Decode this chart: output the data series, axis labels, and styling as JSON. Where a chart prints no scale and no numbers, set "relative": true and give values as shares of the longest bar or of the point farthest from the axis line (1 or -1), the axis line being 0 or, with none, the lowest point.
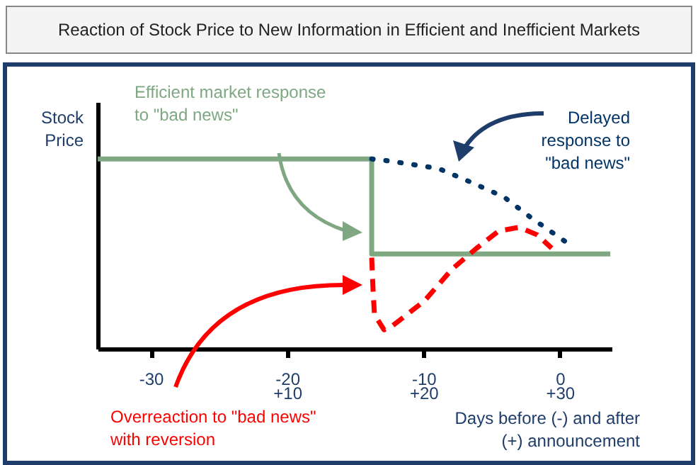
{
  "chart_data": {
    "type": "line",
    "title": "Reaction of Stock Price to New Information in Efficient and Inefficient Markets",
    "xlabel": "Days before (-) and after (+) announcement",
    "ylabel": "Stock Price",
    "relative": true,
    "xlim": [
      -33.9,
      3.8
    ],
    "xticks": [
      -30,
      -20,
      -10,
      0
    ],
    "x2lim": [
      -3.9,
      33.8
    ],
    "x2ticks": [
      {
        "value": 10,
        "label": "+10"
      },
      {
        "value": 20,
        "label": "+20"
      },
      {
        "value": 30,
        "label": "+30"
      }
    ],
    "grid": false,
    "marker": "none",
    "series": [
      {
        "color": "#7fa882",
        "line_style": "solid",
        "x": [
          -33.9,
          -13.8,
          -13.8,
          3.7
        ],
        "values": [
          1,
          1,
          0.5,
          0.5
        ]
      },
      {
        "color": "#003366",
        "line_style": "dotted",
        "x": [
          -13.8,
          -12.55,
          -8.9,
          -6.6,
          -4.1,
          -2.1,
          -0.3,
          0.7
        ],
        "values": [
          1,
          0.99,
          0.95,
          0.88,
          0.8,
          0.69,
          0.6,
          0.55
        ]
      },
      {
        "color": "#ff0000",
        "line_style": "dashed",
        "x": [
          -13.8,
          -13.7,
          -13.6,
          -12.9,
          -12.3,
          -9.96,
          -7.9,
          -6.1,
          -4.5,
          -3.0,
          -1.65,
          -0.6
        ],
        "values": [
          0.48,
          0.31,
          0.18,
          0.1,
          0.12,
          0.25,
          0.42,
          0.53,
          0.62,
          0.64,
          0.6,
          0.53
        ]
      }
    ],
    "annotations": [
      "Efficient market response to \"bad news\"",
      "Delayed response to \"bad news\"",
      "Overreaction to \"bad news\" with reversion"
    ]
  }
}
